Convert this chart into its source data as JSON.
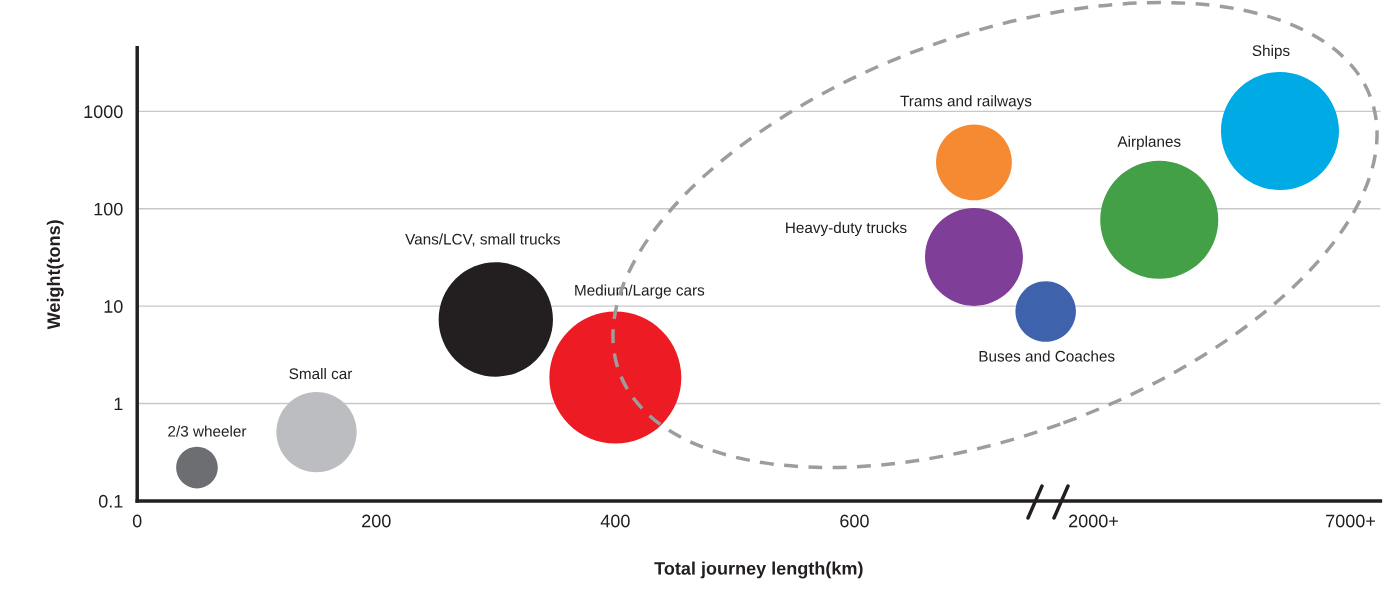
{
  "chart_data": {
    "type": "bubble",
    "xlabel": "Total journey length(km)",
    "ylabel": "Weight(tons)",
    "series": [
      {
        "name": "2/3 wheeler",
        "color": "#6d6e71",
        "x": [
          50
        ],
        "values": [
          0.22
        ],
        "sizes": [
          0.1
        ]
      },
      {
        "name": "Small car",
        "color": "#bcbdc0",
        "x": [
          150
        ],
        "values": [
          0.51
        ],
        "sizes": [
          0.37
        ]
      },
      {
        "name": "Vans/LCV, small trucks",
        "color": "#231f20",
        "x": [
          300
        ],
        "values": [
          7.3
        ],
        "sizes": [
          0.75
        ]
      },
      {
        "name": "Medium/Large cars",
        "color": "#ed1c24",
        "x": [
          400
        ],
        "values": [
          1.85
        ],
        "sizes": [
          1
        ]
      },
      {
        "name": "Trams and railways",
        "color": "#f58a32",
        "x": [
          700
        ],
        "values": [
          300
        ],
        "sizes": [
          0.33
        ]
      },
      {
        "name": "Heavy-duty trucks",
        "color": "#7f3f98",
        "x": [
          700
        ],
        "values": [
          32
        ],
        "sizes": [
          0.55
        ]
      },
      {
        "name": "Buses and Coaches",
        "color": "#3f62ad",
        "x": [
          760
        ],
        "values": [
          8.8
        ],
        "sizes": [
          0.21
        ]
      },
      {
        "name": "Airplanes",
        "color": "#43a047",
        "x": [
          855
        ],
        "values": [
          77
        ],
        "sizes": [
          0.8
        ]
      },
      {
        "name": "Ships",
        "color": "#00aae4",
        "x": [
          956
        ],
        "values": [
          630
        ],
        "sizes": [
          0.8
        ]
      }
    ],
    "log": "y",
    "grid": "y",
    "xlim": [
      0,
      1040
    ],
    "xticks": [
      0,
      200,
      400,
      600,
      {
        "value": 800,
        "label": "2000+"
      },
      {
        "value": 1015,
        "label": "7000+"
      }
    ],
    "ylim": [
      0.1,
      4500
    ],
    "yticks": [
      0.1,
      1,
      10,
      100,
      1000
    ]
  }
}
